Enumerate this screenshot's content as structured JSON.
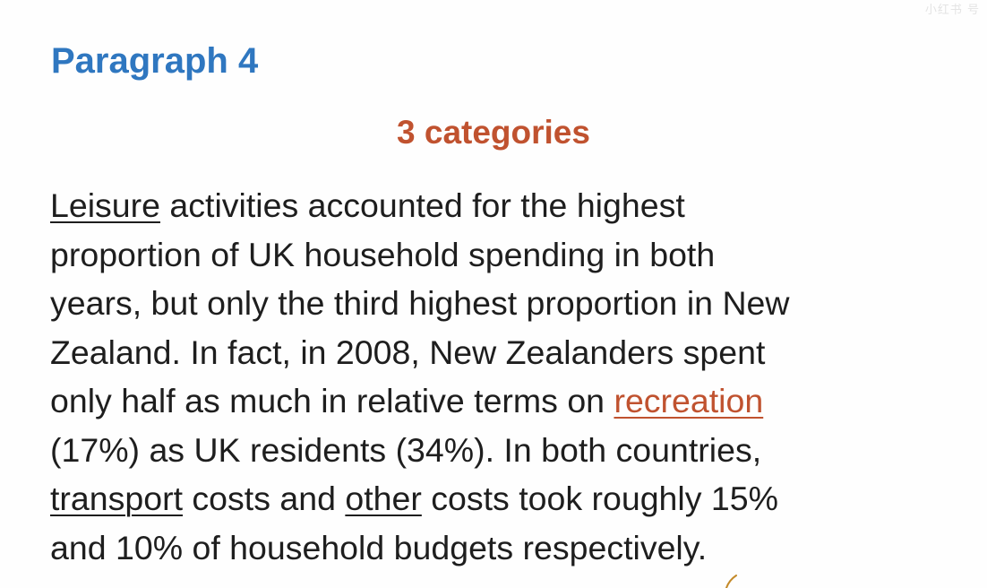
{
  "watermark": "小红书 号",
  "heading": "Paragraph 4",
  "subheading": "3 categories",
  "paragraph": {
    "l1_leisure": "Leisure",
    "l1_rest": " activities accounted for the highest",
    "l2": "proportion of UK household spending in both",
    "l3": "years, but only the third highest proportion in New",
    "l4": "Zealand. In fact, in 2008, New Zealanders spent",
    "l5_start": "only half as much in relative terms on ",
    "l5_recreation": "recreation",
    "l6": "(17%) as UK residents (34%). In both countries,",
    "l7_transport": "transport",
    "l7_mid": " costs and ",
    "l7_other": "other",
    "l7_end": " costs took roughly 15%",
    "l8": "and 10% of household budgets respectively."
  },
  "colors": {
    "heading": "#2f77c0",
    "accent": "#c0522f",
    "text": "#1e1e1e"
  }
}
